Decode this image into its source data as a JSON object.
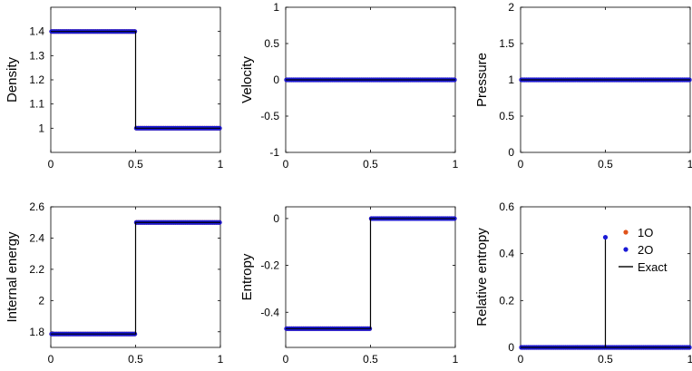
{
  "chart_data": [
    {
      "type": "scatter",
      "ylabel": "Density",
      "xlim": [
        0,
        1
      ],
      "ylim": [
        0.9,
        1.5
      ],
      "xticks": [
        "0",
        "0.5",
        "1"
      ],
      "yticks": [
        "1",
        "1.1",
        "1.2",
        "1.3",
        "1.4"
      ],
      "ytick_values": [
        1,
        1.1,
        1.2,
        1.3,
        1.4
      ],
      "series": [
        {
          "kind": "markers",
          "color": "#e0531b",
          "x_range": [
            0,
            1
          ],
          "step_x": 0.5,
          "y_left": 1.4,
          "y_right": 1.0
        },
        {
          "kind": "markers",
          "color": "#1a1ad6",
          "x_range": [
            0,
            1
          ],
          "step_x": 0.5,
          "y_left": 1.4,
          "y_right": 1.0
        },
        {
          "kind": "line",
          "color": "#000000",
          "x": [
            0,
            0.5,
            0.5,
            1
          ],
          "y": [
            1.4,
            1.4,
            1.0,
            1.0
          ]
        }
      ]
    },
    {
      "type": "scatter",
      "ylabel": "Velocity",
      "xlim": [
        0,
        1
      ],
      "ylim": [
        -1,
        1
      ],
      "xticks": [
        "0",
        "0.5",
        "1"
      ],
      "yticks": [
        "-1",
        "-0.5",
        "0",
        "0.5",
        "1"
      ],
      "ytick_values": [
        -1,
        -0.5,
        0,
        0.5,
        1
      ],
      "series": [
        {
          "kind": "markers",
          "color": "#e0531b",
          "x_range": [
            0,
            1
          ],
          "step_x": 0.5,
          "y_left": 0,
          "y_right": 0
        },
        {
          "kind": "markers",
          "color": "#1a1ad6",
          "x_range": [
            0,
            1
          ],
          "step_x": 0.5,
          "y_left": 0,
          "y_right": 0
        },
        {
          "kind": "line",
          "color": "#000000",
          "x": [
            0,
            1
          ],
          "y": [
            0,
            0
          ]
        }
      ]
    },
    {
      "type": "scatter",
      "ylabel": "Pressure",
      "xlim": [
        0,
        1
      ],
      "ylim": [
        0,
        2
      ],
      "xticks": [
        "0",
        "0.5",
        "1"
      ],
      "yticks": [
        "0",
        "0.5",
        "1",
        "1.5",
        "2"
      ],
      "ytick_values": [
        0,
        0.5,
        1,
        1.5,
        2
      ],
      "series": [
        {
          "kind": "markers",
          "color": "#e0531b",
          "x_range": [
            0,
            1
          ],
          "step_x": 0.5,
          "y_left": 1,
          "y_right": 1
        },
        {
          "kind": "markers",
          "color": "#1a1ad6",
          "x_range": [
            0,
            1
          ],
          "step_x": 0.5,
          "y_left": 1,
          "y_right": 1
        },
        {
          "kind": "line",
          "color": "#000000",
          "x": [
            0,
            1
          ],
          "y": [
            1,
            1
          ]
        }
      ]
    },
    {
      "type": "scatter",
      "ylabel": "Internal energy",
      "xlim": [
        0,
        1
      ],
      "ylim": [
        1.7,
        2.6
      ],
      "xticks": [
        "0",
        "0.5",
        "1"
      ],
      "yticks": [
        "1.8",
        "2",
        "2.2",
        "2.4",
        "2.6"
      ],
      "ytick_values": [
        1.8,
        2.0,
        2.2,
        2.4,
        2.6
      ],
      "series": [
        {
          "kind": "markers",
          "color": "#e0531b",
          "x_range": [
            0,
            1
          ],
          "step_x": 0.5,
          "y_left": 1.786,
          "y_right": 2.5
        },
        {
          "kind": "markers",
          "color": "#1a1ad6",
          "x_range": [
            0,
            1
          ],
          "step_x": 0.5,
          "y_left": 1.786,
          "y_right": 2.5
        },
        {
          "kind": "line",
          "color": "#000000",
          "x": [
            0,
            0.5,
            0.5,
            1
          ],
          "y": [
            1.786,
            1.786,
            2.5,
            2.5
          ]
        }
      ]
    },
    {
      "type": "scatter",
      "ylabel": "Entropy",
      "xlim": [
        0,
        1
      ],
      "ylim": [
        -0.55,
        0.05
      ],
      "xticks": [
        "0",
        "0.5",
        "1"
      ],
      "yticks": [
        "-0.4",
        "-0.2",
        "0"
      ],
      "ytick_values": [
        -0.4,
        -0.2,
        0
      ],
      "series": [
        {
          "kind": "markers",
          "color": "#e0531b",
          "x_range": [
            0,
            1
          ],
          "step_x": 0.5,
          "y_left": -0.47,
          "y_right": 0
        },
        {
          "kind": "markers",
          "color": "#1a1ad6",
          "x_range": [
            0,
            1
          ],
          "step_x": 0.5,
          "y_left": -0.47,
          "y_right": 0
        },
        {
          "kind": "line",
          "color": "#000000",
          "x": [
            0,
            0.5,
            0.5,
            1
          ],
          "y": [
            -0.47,
            -0.47,
            0,
            0
          ]
        }
      ]
    },
    {
      "type": "scatter",
      "ylabel": "Relative entropy",
      "xlim": [
        0,
        1
      ],
      "ylim": [
        0,
        0.6
      ],
      "xticks": [
        "0",
        "0.5",
        "1"
      ],
      "yticks": [
        "0",
        "0.2",
        "0.4",
        "0.6"
      ],
      "ytick_values": [
        0,
        0.2,
        0.4,
        0.6
      ],
      "series": [
        {
          "kind": "markers",
          "color": "#e0531b",
          "x_range": [
            0,
            1
          ],
          "step_x": 0.5,
          "y_left": 0,
          "y_right": 0
        },
        {
          "kind": "markers",
          "color": "#1a1ad6",
          "x_range": [
            0,
            1
          ],
          "step_x": 0.5,
          "y_left": 0,
          "y_right": 0
        },
        {
          "kind": "line",
          "color": "#000000",
          "x": [
            0,
            0.5,
            0.5,
            0.5,
            1
          ],
          "y": [
            0,
            0,
            0.47,
            0,
            0
          ]
        },
        {
          "kind": "point",
          "color": "#1a1ad6",
          "x": 0.5,
          "y": 0.47
        }
      ],
      "legend": {
        "placement": "upper-right-inside",
        "entries": [
          {
            "label": "1O",
            "color": "#e0531b",
            "kind": "marker"
          },
          {
            "label": "2O",
            "color": "#1a1ad6",
            "kind": "marker"
          },
          {
            "label": "Exact",
            "color": "#000000",
            "kind": "line"
          }
        ]
      }
    }
  ]
}
